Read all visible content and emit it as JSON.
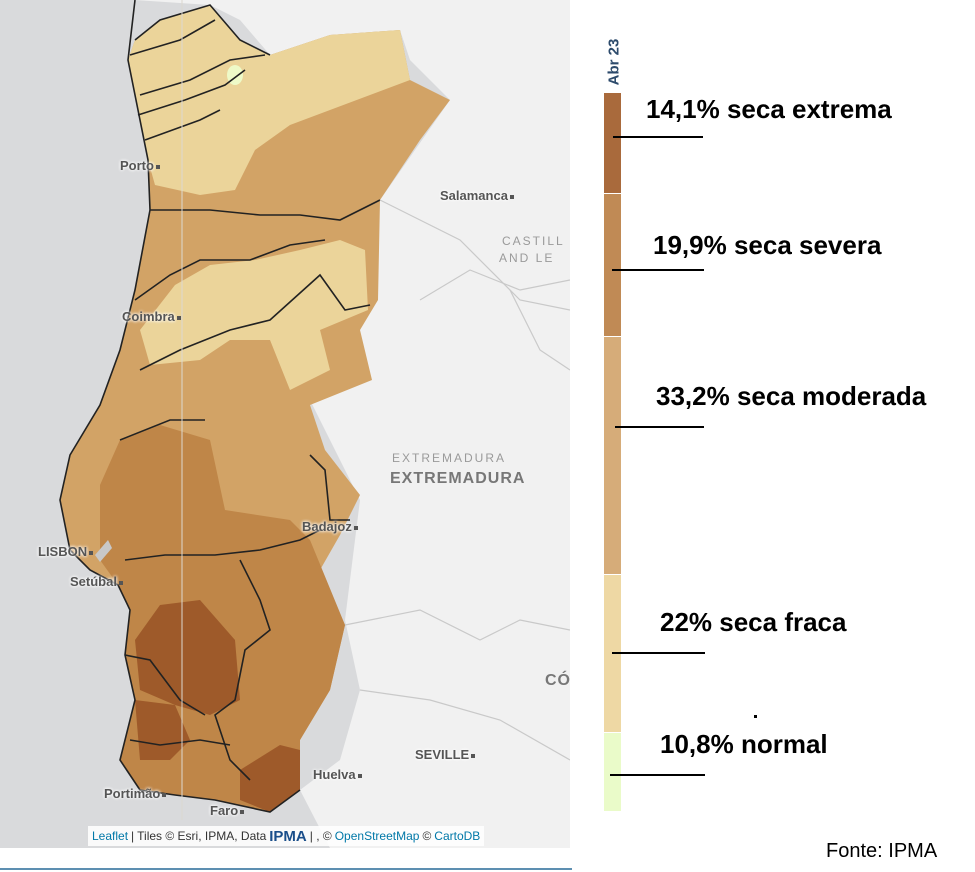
{
  "map": {
    "cities": [
      {
        "name": "Porto"
      },
      {
        "name": "Salamanca"
      },
      {
        "name": "Coimbra"
      },
      {
        "name": "LISBON"
      },
      {
        "name": "Setúbal"
      },
      {
        "name": "Badajoz"
      },
      {
        "name": "Portimão"
      },
      {
        "name": "Faro"
      },
      {
        "name": "Huelva"
      },
      {
        "name": "SEVILLE"
      }
    ],
    "regions": {
      "castilla_line1": "CASTILL",
      "castilla_line2": "AND LE",
      "extremadura_small": "EXTREMADURA",
      "extremadura_big": "EXTREMADURA",
      "cordoba": "CÓ"
    },
    "colors": {
      "sea": "#d9dadc",
      "land": "#f1f1f1",
      "normal": "#eefac8",
      "seca_fraca": "#ebd49a",
      "seca_moderada": "#d2a366",
      "seca_severa": "#bf8648",
      "seca_extrema": "#9e5a2a"
    },
    "attribution": {
      "leaflet": "Leaflet",
      "sep1": "|",
      "tiles": "Tiles © Esri, IPMA, Data",
      "ipma_logo": "IPMA",
      "sep2": "| , ©",
      "osm": "OpenStreetMap",
      "copy": "©",
      "cartodb": "CartoDB"
    }
  },
  "legend": {
    "period": "Abr 23",
    "items": [
      {
        "label": "14,1% seca extrema",
        "color": "#a96a3c",
        "fraction": 0.141
      },
      {
        "label": "19,9% seca severa",
        "color": "#c08a55",
        "fraction": 0.199
      },
      {
        "label": "33,2% seca moderada",
        "color": "#d6ac79",
        "fraction": 0.332
      },
      {
        "label": "22% seca fraca",
        "color": "#eed8a4",
        "fraction": 0.22
      },
      {
        "label": "10,8% normal",
        "color": "#eafbc9",
        "fraction": 0.108
      }
    ]
  },
  "source": "Fonte: IPMA"
}
